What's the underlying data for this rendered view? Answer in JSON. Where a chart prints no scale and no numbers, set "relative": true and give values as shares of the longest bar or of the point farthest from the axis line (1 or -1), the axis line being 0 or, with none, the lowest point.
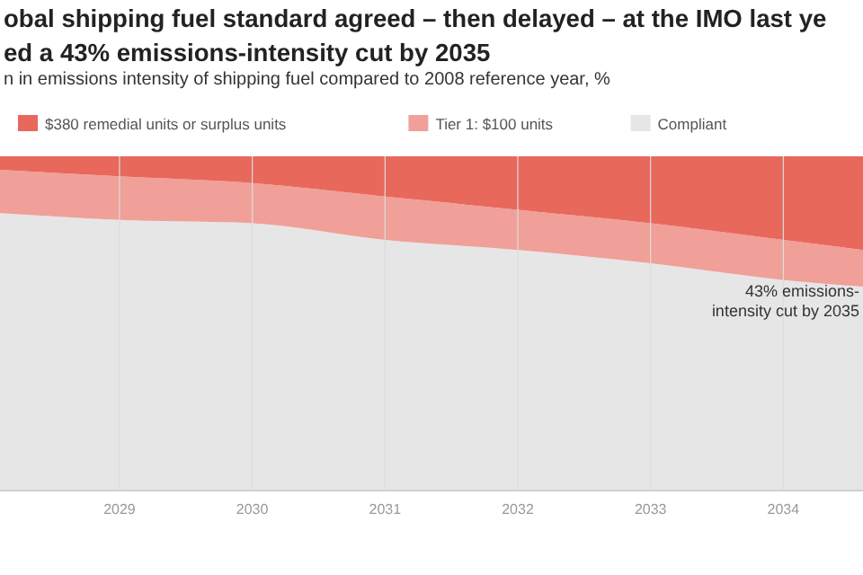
{
  "chart_data": {
    "type": "area",
    "stacked": true,
    "relative": true,
    "title": "obal shipping fuel standard agreed – then delayed – at the IMO last ye\ned a 43% emissions-intensity cut by 2035",
    "subtitle": "n in emissions intensity of shipping fuel compared to 2008 reference year, %",
    "x": [
      2028.1,
      2029,
      2030,
      2031,
      2032,
      2033,
      2034,
      2034.6
    ],
    "xlim": [
      2028.1,
      2034.6
    ],
    "xticks": [
      2029,
      2030,
      2031,
      2032,
      2033,
      2034
    ],
    "series": [
      {
        "name": "Compliant",
        "color": "#e6e6e6",
        "values": [
          0.83,
          0.81,
          0.8,
          0.75,
          0.72,
          0.68,
          0.63,
          0.61
        ]
      },
      {
        "name": "Tier 1: $100 units",
        "color": "#f0a098",
        "values": [
          0.13,
          0.13,
          0.12,
          0.13,
          0.12,
          0.12,
          0.12,
          0.11
        ]
      },
      {
        "name": "$380 remedial units or surplus units",
        "color": "#e8685c",
        "values": [
          0.04,
          0.06,
          0.08,
          0.12,
          0.16,
          0.2,
          0.25,
          0.28
        ]
      }
    ],
    "legend": "top",
    "grid": "x",
    "annotations": [
      "43% emissions-\nintensity cut by 2035"
    ]
  }
}
